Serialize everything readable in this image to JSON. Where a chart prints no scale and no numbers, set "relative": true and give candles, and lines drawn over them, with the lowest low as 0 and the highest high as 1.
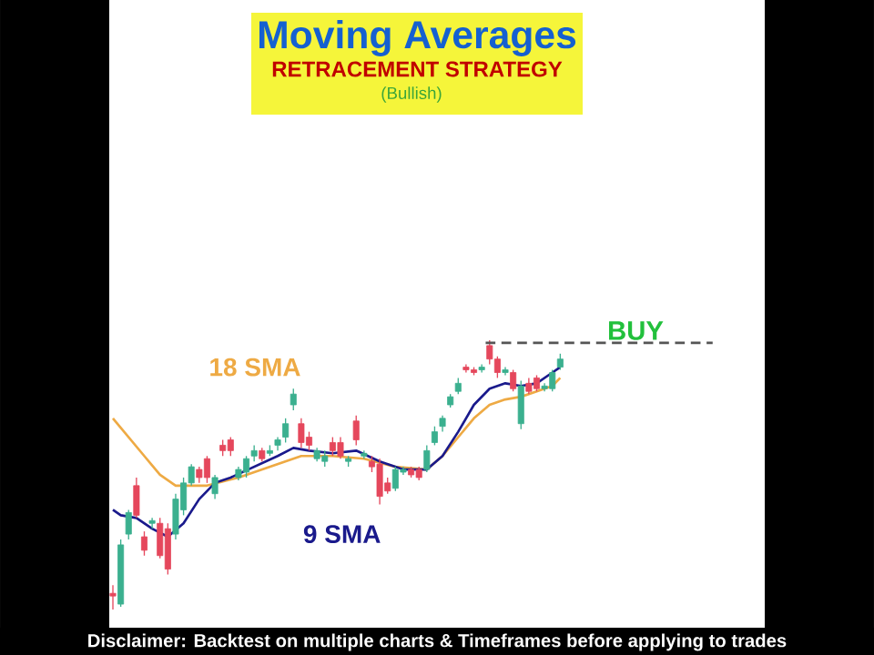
{
  "chart_data": {
    "type": "candlestick",
    "title": "Moving Averages",
    "subtitle": "RETRACEMENT STRATEGY",
    "annotations": [
      "(Bullish)",
      "Disclaimer: Backtest on multiple charts & Timeframes before applying to trades"
    ],
    "relative": true,
    "categories": [
      null,
      null,
      null,
      null,
      null,
      null,
      null,
      null,
      null,
      null,
      null,
      null,
      null,
      null,
      null,
      null,
      null,
      null,
      null,
      null,
      null,
      null,
      null,
      null,
      null,
      null,
      null,
      null,
      null,
      null,
      null,
      null,
      null,
      null,
      null,
      null,
      null,
      null,
      null,
      null,
      null,
      null,
      null,
      null,
      null,
      null,
      null,
      null,
      null,
      null,
      null,
      null,
      null,
      null,
      null,
      null,
      null,
      null
    ],
    "ohlc": [
      [
        0.06,
        0.09,
        0,
        0.05
      ],
      [
        0.02,
        0.26,
        0.01,
        0.24
      ],
      [
        0.28,
        0.37,
        0.26,
        0.36
      ],
      [
        0.46,
        0.49,
        0.34,
        0.35
      ],
      [
        0.27,
        0.29,
        0.2,
        0.22
      ],
      [
        0.32,
        0.34,
        0.3,
        0.33
      ],
      [
        0.32,
        0.34,
        0.19,
        0.2
      ],
      [
        0.3,
        0.32,
        0.13,
        0.15
      ],
      [
        0.28,
        0.43,
        0.26,
        0.41
      ],
      [
        0.37,
        0.49,
        0.35,
        0.47
      ],
      [
        0.47,
        0.54,
        0.46,
        0.53
      ],
      [
        0.52,
        0.53,
        0.47,
        0.49
      ],
      [
        0.56,
        0.57,
        0.47,
        0.49
      ],
      [
        0.43,
        0.5,
        0.41,
        0.49
      ],
      [
        0.61,
        0.63,
        0.57,
        0.59
      ],
      [
        0.63,
        0.64,
        0.57,
        0.59
      ],
      [
        0.49,
        0.53,
        0.48,
        0.52
      ],
      [
        0.51,
        0.57,
        0.49,
        0.56
      ],
      [
        0.57,
        0.61,
        0.55,
        0.59
      ],
      [
        0.59,
        0.6,
        0.55,
        0.56
      ],
      [
        0.58,
        0.61,
        0.57,
        0.59
      ],
      [
        0.61,
        0.64,
        0.59,
        0.63
      ],
      [
        0.64,
        0.71,
        0.62,
        0.69
      ],
      [
        0.76,
        0.82,
        0.74,
        0.8
      ],
      [
        0.69,
        0.71,
        0.6,
        0.62
      ],
      [
        0.64,
        0.66,
        0.59,
        0.61
      ],
      [
        0.56,
        0.6,
        0.55,
        0.59
      ],
      [
        0.55,
        0.59,
        0.53,
        0.57
      ],
      [
        0.62,
        0.64,
        0.57,
        0.59
      ],
      [
        0.62,
        0.64,
        0.56,
        0.57
      ],
      [
        0.55,
        0.57,
        0.53,
        0.56
      ],
      [
        0.7,
        0.72,
        0.61,
        0.63
      ],
      [
        0.57,
        0.59,
        0.56,
        0.58
      ],
      [
        0.55,
        0.57,
        0.51,
        0.53
      ],
      [
        0.54,
        0.56,
        0.39,
        0.42
      ],
      [
        0.47,
        0.49,
        0.43,
        0.44
      ],
      [
        0.45,
        0.53,
        0.44,
        0.52
      ],
      [
        0.51,
        0.53,
        0.5,
        0.52
      ],
      [
        0.52,
        0.53,
        0.49,
        0.5
      ],
      [
        0.52,
        0.53,
        0.48,
        0.49
      ],
      [
        0.52,
        0.61,
        0.51,
        0.59
      ],
      [
        0.62,
        0.68,
        0.61,
        0.66
      ],
      [
        0.68,
        0.72,
        0.66,
        0.71
      ],
      [
        0.76,
        0.8,
        0.75,
        0.79
      ],
      [
        0.81,
        0.86,
        0.8,
        0.84
      ],
      [
        0.9,
        0.91,
        0.88,
        0.89
      ],
      [
        0.89,
        0.9,
        0.87,
        0.88
      ],
      [
        0.89,
        0.91,
        0.88,
        0.9
      ],
      [
        0.98,
        1,
        0.91,
        0.93
      ],
      [
        0.93,
        0.94,
        0.86,
        0.88
      ],
      [
        0.88,
        0.9,
        0.87,
        0.89
      ],
      [
        0.88,
        0.89,
        0.81,
        0.82
      ],
      [
        0.69,
        0.85,
        0.67,
        0.83
      ],
      [
        0.84,
        0.86,
        0.8,
        0.81
      ],
      [
        0.86,
        0.87,
        0.81,
        0.82
      ],
      [
        0.82,
        0.84,
        0.81,
        0.83
      ],
      [
        0.82,
        0.89,
        0.81,
        0.88
      ],
      [
        0.9,
        0.95,
        0.89,
        0.93
      ]
    ],
    "series": [
      {
        "name": "18 SMA",
        "type": "line",
        "color": "#eeaa44",
        "values": [
          0.71,
          null,
          0.64,
          null,
          0.57,
          null,
          0.5,
          null,
          0.46,
          null,
          null,
          null,
          0.46,
          null,
          null,
          null,
          0.49,
          null,
          null,
          null,
          0.53,
          null,
          null,
          null,
          0.57,
          null,
          null,
          null,
          0.57,
          null,
          null,
          null,
          0.56,
          null,
          null,
          null,
          0.53,
          null,
          null,
          null,
          0.52,
          null,
          0.57,
          null,
          0.64,
          null,
          0.71,
          null,
          0.76,
          null,
          0.78,
          null,
          0.79,
          null,
          0.81,
          null,
          0.83,
          0.86
        ]
      },
      {
        "name": "9 SMA",
        "type": "line",
        "color": "#1a1a8c",
        "values": [
          0.37,
          0.35,
          null,
          0.34,
          null,
          0.3,
          null,
          0.27,
          null,
          0.32,
          null,
          0.41,
          null,
          0.47,
          null,
          0.49,
          null,
          null,
          0.53,
          null,
          null,
          0.57,
          null,
          0.6,
          null,
          0.59,
          null,
          null,
          0.58,
          null,
          null,
          0.59,
          null,
          null,
          0.55,
          null,
          null,
          0.52,
          null,
          null,
          0.52,
          null,
          0.57,
          null,
          0.66,
          null,
          0.76,
          null,
          0.82,
          null,
          0.84,
          null,
          0.83,
          null,
          0.84,
          null,
          0.88,
          0.9
        ]
      }
    ],
    "ref_lines": [
      {
        "axis": "y",
        "value": 0.99,
        "label": "BUY",
        "color": "#555555",
        "line_style": "dashed"
      }
    ]
  }
}
